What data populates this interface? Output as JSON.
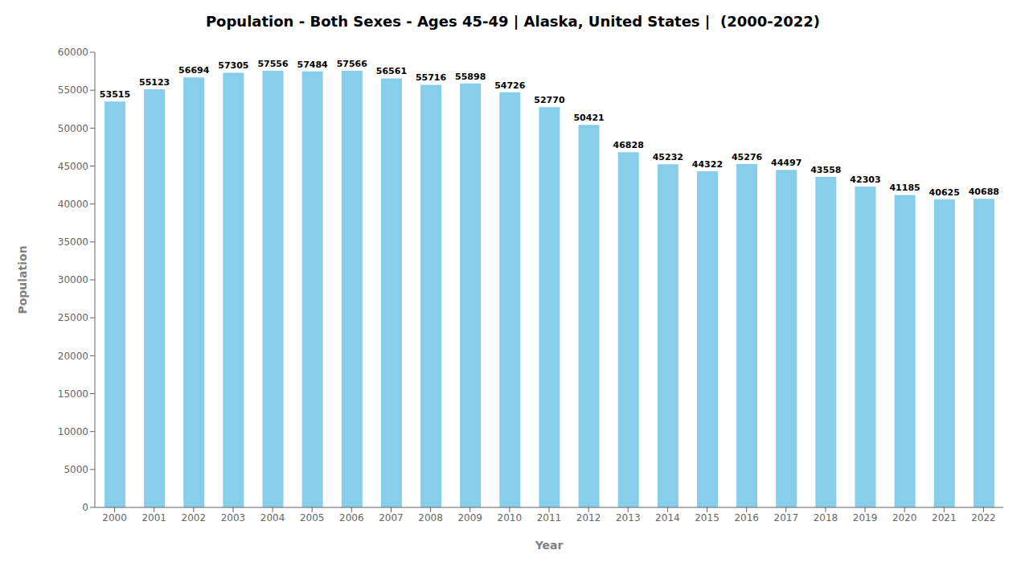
{
  "chart_data": {
    "type": "bar",
    "title": "Population - Both Sexes - Ages 45-49 | Alaska, United States |  (2000-2022)",
    "xlabel": "Year",
    "ylabel": "Population",
    "categories": [
      "2000",
      "2001",
      "2002",
      "2003",
      "2004",
      "2005",
      "2006",
      "2007",
      "2008",
      "2009",
      "2010",
      "2011",
      "2012",
      "2013",
      "2014",
      "2015",
      "2016",
      "2017",
      "2018",
      "2019",
      "2020",
      "2021",
      "2022"
    ],
    "values": [
      53515,
      55123,
      56694,
      57305,
      57556,
      57484,
      57566,
      56561,
      55716,
      55898,
      54726,
      52770,
      50421,
      46828,
      45232,
      44322,
      45276,
      44497,
      43558,
      42303,
      41185,
      40625,
      40688
    ],
    "color": "#87ceeb",
    "ylim": [
      0,
      60000
    ],
    "yticks": [
      0,
      5000,
      10000,
      15000,
      20000,
      25000,
      30000,
      35000,
      40000,
      45000,
      50000,
      55000,
      60000
    ],
    "grid": false,
    "data_labels": true
  }
}
